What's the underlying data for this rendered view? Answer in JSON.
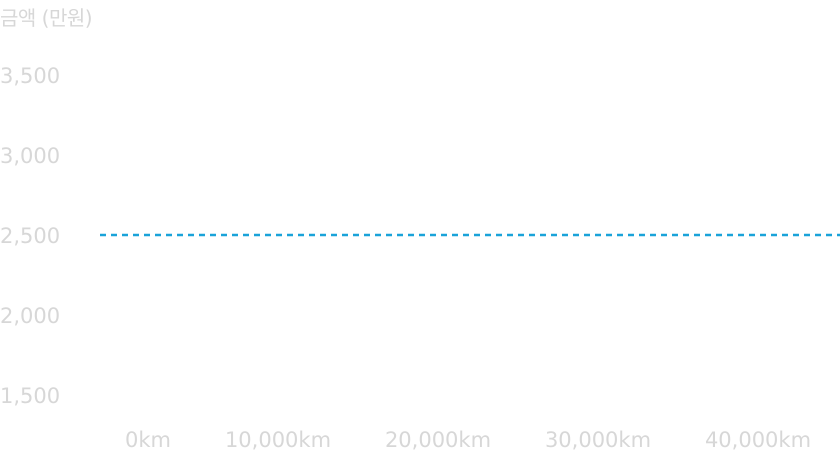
{
  "chart_data": {
    "type": "line",
    "title": "",
    "ylabel": "금액 (만원)",
    "xlabel": "",
    "y_ticks": [
      "3,500",
      "3,000",
      "2,500",
      "2,000",
      "1,500"
    ],
    "y_tick_values": [
      3500,
      3000,
      2500,
      2000,
      1500
    ],
    "x_ticks": [
      "0km",
      "10,000km",
      "20,000km",
      "30,000km",
      "40,000km"
    ],
    "x_tick_values": [
      0,
      10000,
      20000,
      30000,
      40000
    ],
    "ylim": [
      1300,
      3700
    ],
    "xlim": [
      -2000,
      45000
    ],
    "grid": false,
    "series": [
      {
        "style": "dashed",
        "color": "#1aa3d9",
        "points": [
          {
            "x": -2000,
            "y": 2500
          },
          {
            "x": 45000,
            "y": 2500
          }
        ]
      }
    ],
    "colors": {
      "tick_text": "#d7d7d7",
      "reference_line": "#1aa3d9"
    }
  }
}
